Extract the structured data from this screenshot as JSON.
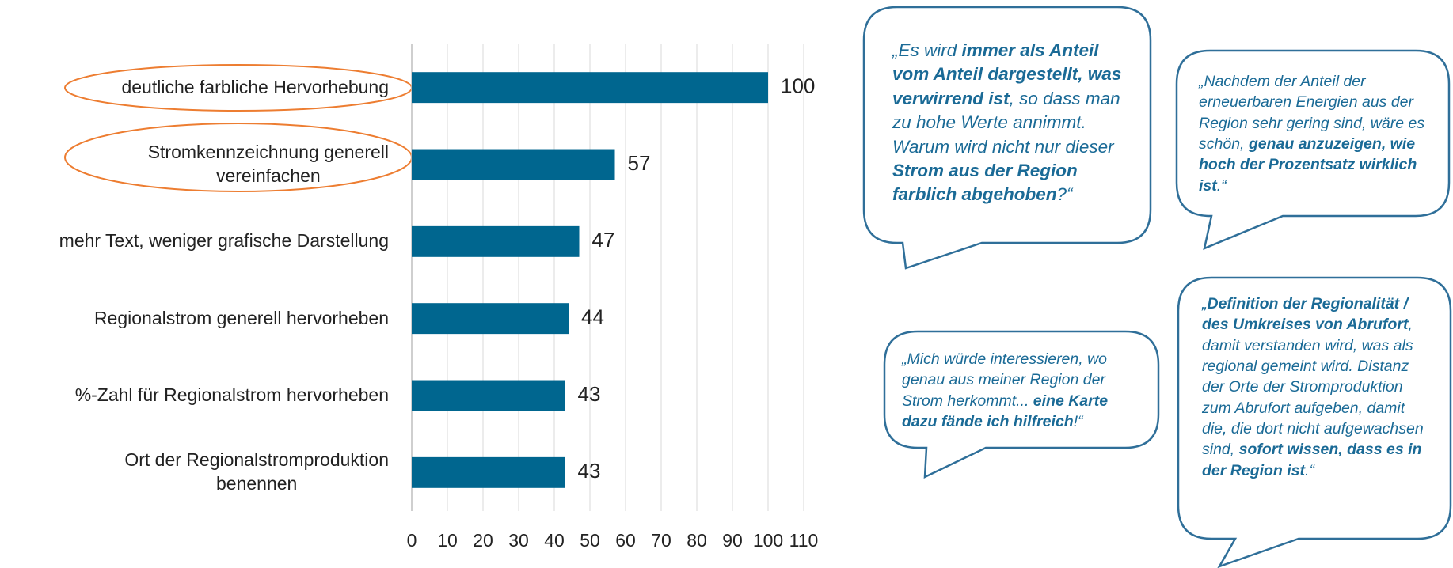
{
  "chart_data": {
    "type": "barh",
    "categories": [
      "deutliche farbliche Hervorhebung",
      "Stromkennzeichnung generell\nvereinfachen",
      "mehr Text, weniger grafische Darstellung",
      "Regionalstrom generell hervorheben",
      "%-Zahl für Regionalstrom hervorheben",
      "Ort der Regionalstromproduktion\nbenennen"
    ],
    "values": [
      100,
      57,
      47,
      44,
      43,
      43
    ],
    "color": "#00668f",
    "xlim": [
      0,
      110
    ],
    "xticks": [
      0,
      10,
      20,
      30,
      40,
      50,
      60,
      70,
      80,
      90,
      100,
      110
    ],
    "grid": true
  },
  "quotes": [
    {
      "segments": [
        {
          "text": "„Es wird ",
          "bold": false
        },
        {
          "text": "immer als Anteil vom Anteil dargestellt, was verwirrend ist",
          "bold": true
        },
        {
          "text": ", so dass man zu hohe Werte annimmt. Warum wird nicht nur dieser ",
          "bold": false
        },
        {
          "text": "Strom aus der Region farblich abgehoben",
          "bold": true
        },
        {
          "text": "?“",
          "bold": false
        }
      ]
    },
    {
      "segments": [
        {
          "text": "„Nachdem der Anteil der erneuerbaren Energien aus der Region sehr gering sind, wäre es schön, ",
          "bold": false
        },
        {
          "text": "genau anzuzeigen, wie hoch der Prozentsatz wirklich ist",
          "bold": true
        },
        {
          "text": ".“",
          "bold": false
        }
      ]
    },
    {
      "segments": [
        {
          "text": "„Mich würde interessieren, wo genau aus meiner Region der Strom herkommt... ",
          "bold": false
        },
        {
          "text": "eine Karte dazu fände ich hilfreich",
          "bold": true
        },
        {
          "text": "!“",
          "bold": false
        }
      ]
    },
    {
      "segments": [
        {
          "text": "„",
          "bold": false
        },
        {
          "text": "Definition der Regionalität / des Umkreises von Abrufort",
          "bold": true
        },
        {
          "text": ", damit verstanden wird, was als regional gemeint wird. Distanz der Orte der Stromproduktion zum Abrufort aufgeben, damit die, die dort nicht aufgewachsen sind, ",
          "bold": false
        },
        {
          "text": "sofort wissen, dass es in der Region ist",
          "bold": true
        },
        {
          "text": ".“",
          "bold": false
        }
      ]
    }
  ]
}
